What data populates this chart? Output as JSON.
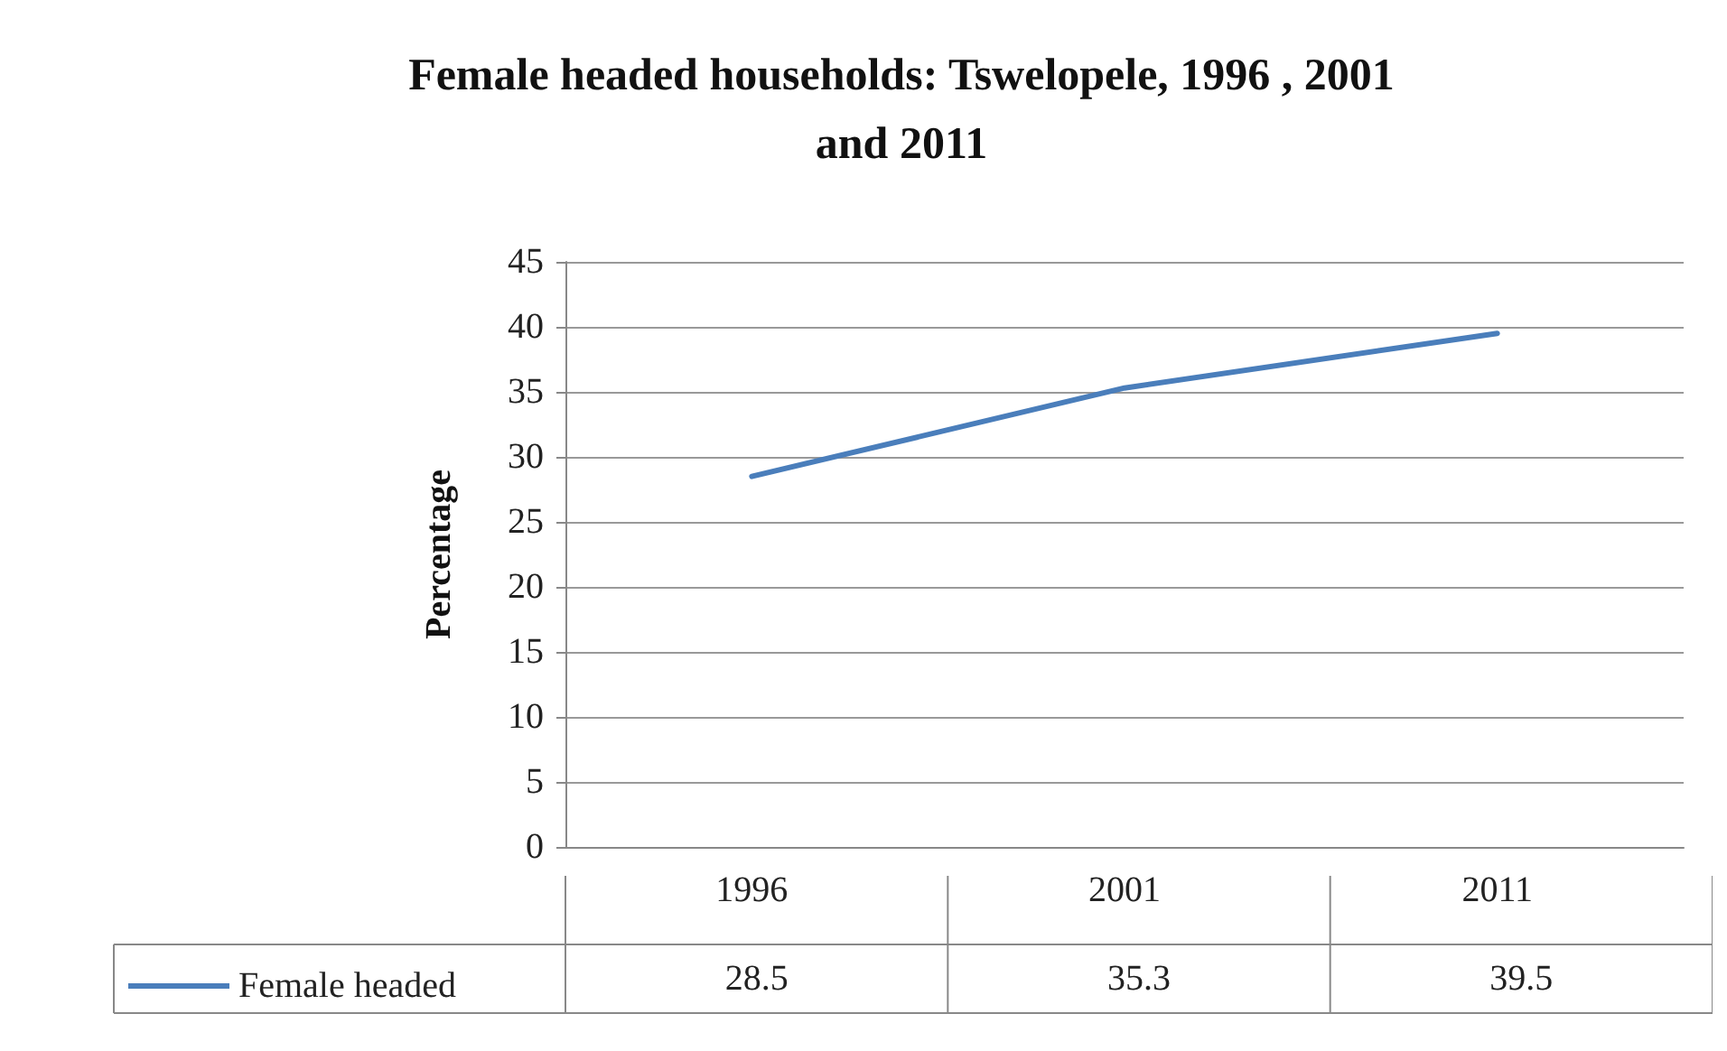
{
  "chart_data": {
    "type": "line",
    "title": "Female headed households: Tswelopele, 1996 , 2001\nand 2011",
    "ylabel": "Percentage",
    "categories": [
      "1996",
      "2001",
      "2011"
    ],
    "series": [
      {
        "name": "Female headed",
        "color": "#4a7ebb",
        "values": [
          28.5,
          35.3,
          39.5
        ]
      }
    ],
    "ylim": [
      0,
      45
    ],
    "yticks": [
      0,
      5,
      10,
      15,
      20,
      25,
      30,
      35,
      40,
      45
    ],
    "grid": "y",
    "legend": "bottom left",
    "marker": "none",
    "line_style": "solid",
    "data_labels": true
  }
}
